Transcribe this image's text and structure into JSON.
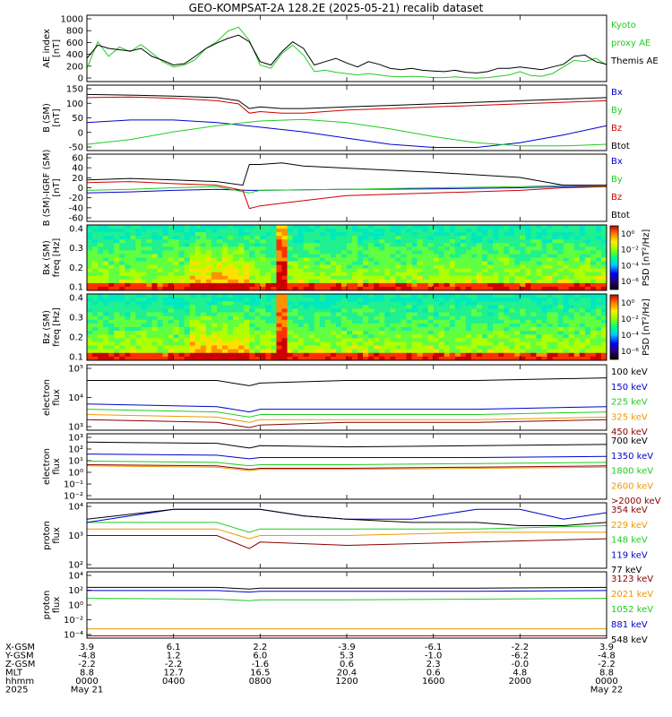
{
  "title": "GEO-KOMPSAT-2A 128.2E (2025-05-21) recalib dataset",
  "chart_data": [
    {
      "type": "line",
      "id": "ae",
      "ylabel": [
        "AE index",
        "[nT]"
      ],
      "yticks": [
        "1000",
        "800",
        "600",
        "400",
        "200",
        "0"
      ],
      "ylim": [
        0,
        1000
      ],
      "series": [
        {
          "name": "Kyoto proxy AE",
          "label_lines": [
            "Kyoto",
            "proxy AE"
          ],
          "color": "#22cc22",
          "x": [
            0,
            0.5,
            1,
            1.5,
            2,
            2.5,
            3,
            3.5,
            4,
            4.5,
            5,
            5.5,
            6,
            6.5,
            7,
            7.5,
            8,
            8.5,
            9,
            9.5,
            10,
            10.5,
            11,
            11.5,
            12,
            12.5,
            13,
            13.5,
            14,
            14.5,
            15,
            15.5,
            16,
            16.5,
            17,
            17.5,
            18,
            18.5,
            19,
            19.5,
            20,
            20.5,
            21,
            21.5,
            22,
            22.5,
            23,
            23.5,
            24
          ],
          "y": [
            200,
            600,
            380,
            520,
            450,
            560,
            430,
            300,
            220,
            250,
            330,
            500,
            600,
            760,
            820,
            620,
            250,
            200,
            420,
            550,
            400,
            150,
            170,
            140,
            120,
            100,
            120,
            100,
            80,
            70,
            80,
            70,
            60,
            60,
            70,
            60,
            50,
            60,
            80,
            100,
            150,
            90,
            80,
            120,
            220,
            320,
            300,
            350,
            250
          ]
        },
        {
          "name": "Themis AE",
          "color": "#000000",
          "x": [
            0,
            0.5,
            1,
            1.5,
            2,
            2.5,
            3,
            3.5,
            4,
            4.5,
            5,
            5.5,
            6,
            6.5,
            7,
            7.5,
            8,
            8.5,
            9,
            9.5,
            10,
            10.5,
            11,
            11.5,
            12,
            12.5,
            13,
            13.5,
            14,
            14.5,
            15,
            15.5,
            16,
            16.5,
            17,
            17.5,
            18,
            18.5,
            19,
            19.5,
            20,
            20.5,
            21,
            21.5,
            22,
            22.5,
            23,
            23.5,
            24
          ],
          "y": [
            350,
            550,
            500,
            480,
            460,
            500,
            380,
            320,
            250,
            270,
            380,
            500,
            580,
            650,
            700,
            600,
            300,
            250,
            450,
            600,
            500,
            250,
            300,
            350,
            280,
            220,
            300,
            260,
            200,
            180,
            200,
            170,
            160,
            150,
            170,
            140,
            130,
            150,
            200,
            200,
            220,
            200,
            180,
            220,
            260,
            380,
            400,
            300,
            260
          ]
        }
      ]
    },
    {
      "type": "line",
      "id": "bsm",
      "ylabel": [
        "B (SM)",
        "[nT]"
      ],
      "yticks": [
        "150",
        "100",
        "50",
        "0",
        "-50"
      ],
      "ylim": [
        -60,
        150
      ],
      "series": [
        {
          "name": "Bx",
          "color": "#0000cc",
          "x": [
            0,
            2,
            4,
            6,
            8,
            10,
            12,
            14,
            16,
            18,
            20,
            22,
            24
          ],
          "y": [
            30,
            38,
            38,
            30,
            15,
            0,
            -20,
            -40,
            -50,
            -50,
            -35,
            -10,
            20
          ]
        },
        {
          "name": "By",
          "color": "#22cc22",
          "x": [
            0,
            2,
            4,
            6,
            8,
            10,
            12,
            14,
            16,
            18,
            20,
            22,
            24
          ],
          "y": [
            -40,
            -25,
            0,
            20,
            35,
            40,
            30,
            10,
            -15,
            -35,
            -45,
            -45,
            -40
          ]
        },
        {
          "name": "Bz",
          "color": "#cc0000",
          "x": [
            0,
            2,
            4,
            6,
            7,
            7.5,
            8,
            9,
            10,
            12,
            14,
            16,
            18,
            20,
            22,
            24
          ],
          "y": [
            110,
            112,
            108,
            100,
            90,
            60,
            65,
            60,
            60,
            70,
            75,
            80,
            85,
            90,
            95,
            100
          ]
        },
        {
          "name": "Btot",
          "color": "#000000",
          "x": [
            0,
            2,
            4,
            6,
            7,
            7.5,
            8,
            9,
            10,
            12,
            14,
            16,
            18,
            20,
            22,
            24
          ],
          "y": [
            120,
            118,
            115,
            110,
            100,
            75,
            80,
            75,
            75,
            80,
            85,
            90,
            95,
            100,
            105,
            110
          ]
        }
      ]
    },
    {
      "type": "line",
      "id": "bsm_igrf",
      "ylabel": [
        "B (SM)-IGRF (SM)",
        "[nT]"
      ],
      "yticks": [
        "60",
        "40",
        "20",
        "0",
        "-20",
        "-40",
        "-60"
      ],
      "ylim": [
        -65,
        65
      ],
      "series": [
        {
          "name": "Bx",
          "color": "#0000cc",
          "x": [
            0,
            2,
            4,
            6,
            7.5,
            8,
            12,
            16,
            20,
            22,
            24
          ],
          "y": [
            -10,
            -8,
            -5,
            -3,
            -5,
            -5,
            -3,
            -2,
            0,
            2,
            2
          ]
        },
        {
          "name": "By",
          "color": "#22cc22",
          "x": [
            0,
            2,
            4,
            6,
            7.5,
            8,
            12,
            16,
            20,
            22,
            24
          ],
          "y": [
            -5,
            -3,
            0,
            2,
            -10,
            -5,
            -3,
            0,
            2,
            5,
            3
          ]
        },
        {
          "name": "Bz",
          "color": "#cc0000",
          "x": [
            0,
            2,
            4,
            6,
            7.2,
            7.5,
            8,
            9,
            10,
            12,
            16,
            20,
            22,
            24
          ],
          "y": [
            10,
            12,
            8,
            5,
            -5,
            -40,
            -35,
            -30,
            -25,
            -15,
            -10,
            -5,
            0,
            2
          ]
        },
        {
          "name": "Btot",
          "color": "#000000",
          "x": [
            0,
            2,
            4,
            6,
            7.2,
            7.5,
            8,
            9,
            10,
            12,
            16,
            20,
            22,
            24
          ],
          "y": [
            15,
            18,
            15,
            12,
            5,
            45,
            45,
            48,
            42,
            38,
            30,
            20,
            5,
            5
          ]
        }
      ]
    },
    {
      "type": "heatmap",
      "id": "bx_spec",
      "ylabel": [
        "Bx (SM)",
        "freq [Hz]"
      ],
      "yticks": [
        "0.4",
        "0.3",
        "0.2",
        "0.1"
      ],
      "colorbar_label": "PSD [nT²/Hz]",
      "colorbar_ticks": [
        "10⁰",
        "10⁻²",
        "10⁻⁴",
        "10⁻⁶"
      ]
    },
    {
      "type": "heatmap",
      "id": "bz_spec",
      "ylabel": [
        "Bz (SM)",
        "freq [Hz]"
      ],
      "yticks": [
        "0.4",
        "0.3",
        "0.2",
        "0.1"
      ],
      "colorbar_label": "PSD [nT²/Hz]",
      "colorbar_ticks": [
        "10⁰",
        "10⁻²",
        "10⁻⁴",
        "10⁻⁶"
      ]
    },
    {
      "type": "line",
      "id": "e_low",
      "log_scale": true,
      "ylabel": [
        "electron",
        "flux"
      ],
      "yticks": [
        "10⁵",
        "10⁴",
        "10³"
      ],
      "ylim": [
        2.5,
        5
      ],
      "series": [
        {
          "name": "100 keV",
          "color": "#000000",
          "x": [
            0,
            6,
            7.5,
            8,
            12,
            18,
            24
          ],
          "y": [
            4.4,
            4.4,
            4.2,
            4.3,
            4.4,
            4.4,
            4.5
          ]
        },
        {
          "name": "150 keV",
          "color": "#0000cc",
          "x": [
            0,
            6,
            7.5,
            8,
            12,
            18,
            24
          ],
          "y": [
            3.5,
            3.4,
            3.2,
            3.3,
            3.3,
            3.3,
            3.4
          ]
        },
        {
          "name": "225 keV",
          "color": "#22cc22",
          "x": [
            0,
            6,
            7.5,
            8,
            12,
            18,
            24
          ],
          "y": [
            3.3,
            3.2,
            3.0,
            3.1,
            3.1,
            3.1,
            3.2
          ]
        },
        {
          "name": "325 keV",
          "color": "#ee9900",
          "x": [
            0,
            6,
            7.5,
            8,
            12,
            18,
            24
          ],
          "y": [
            3.1,
            3.0,
            2.8,
            2.9,
            2.9,
            2.9,
            3.0
          ]
        },
        {
          "name": "450 keV",
          "color": "#880000",
          "x": [
            0,
            6,
            7.5,
            8,
            12,
            18,
            24
          ],
          "y": [
            2.9,
            2.8,
            2.6,
            2.7,
            2.8,
            2.8,
            2.9
          ]
        }
      ]
    },
    {
      "type": "line",
      "id": "e_high",
      "log_scale": true,
      "ylabel": [
        "electron",
        "flux"
      ],
      "yticks": [
        "10³",
        "10²",
        "10¹",
        "10⁰",
        "10⁻¹",
        "10⁻²"
      ],
      "ylim": [
        -2.5,
        3
      ],
      "series": [
        {
          "name": "700 keV",
          "color": "#000000",
          "x": [
            0,
            6,
            7.5,
            8,
            12,
            18,
            24
          ],
          "y": [
            2.3,
            2.2,
            1.8,
            2.0,
            1.9,
            2.0,
            2.1
          ]
        },
        {
          "name": "1350 keV",
          "color": "#0000cc",
          "x": [
            0,
            6,
            7.5,
            8,
            12,
            18,
            24
          ],
          "y": [
            1.3,
            1.2,
            0.9,
            1.0,
            1.0,
            1.0,
            1.1
          ]
        },
        {
          "name": "1800 keV",
          "color": "#22cc22",
          "x": [
            0,
            6,
            7.5,
            8,
            12,
            18,
            24
          ],
          "y": [
            0.7,
            0.6,
            0.3,
            0.4,
            0.4,
            0.5,
            0.6
          ]
        },
        {
          "name": "2600 keV",
          "color": "#ee9900",
          "x": [
            0,
            6,
            7.5,
            8,
            12,
            18,
            24
          ],
          "y": [
            0.3,
            0.2,
            -0.1,
            0.0,
            0.0,
            0.1,
            0.2
          ]
        },
        {
          "name": ">2000 keV",
          "color": "#880000",
          "x": [
            0,
            6,
            7.5,
            8,
            12,
            18,
            24
          ],
          "y": [
            0.4,
            0.3,
            0.0,
            0.1,
            0.1,
            0.2,
            0.3
          ]
        }
      ]
    },
    {
      "type": "line",
      "id": "p_low",
      "log_scale": true,
      "ylabel": [
        "proton",
        "flux"
      ],
      "yticks": [
        "10⁴",
        "10³",
        "10²"
      ],
      "ylim": [
        2,
        4
      ],
      "series": [
        {
          "name": "354 keV",
          "color": "#880000",
          "x": [
            0,
            6,
            7.5,
            8,
            12,
            18,
            24
          ],
          "y": [
            3.0,
            3.0,
            2.6,
            2.8,
            2.7,
            2.8,
            2.9
          ]
        },
        {
          "name": "229 keV",
          "color": "#ee9900",
          "x": [
            0,
            6,
            7.5,
            8,
            12,
            18,
            24
          ],
          "y": [
            3.2,
            3.2,
            2.9,
            3.0,
            3.0,
            3.1,
            3.1
          ]
        },
        {
          "name": "148 keV",
          "color": "#22cc22",
          "x": [
            0,
            6,
            7.5,
            8,
            12,
            18,
            24
          ],
          "y": [
            3.4,
            3.4,
            3.1,
            3.2,
            3.2,
            3.2,
            3.3
          ]
        },
        {
          "name": "119 keV",
          "color": "#0000cc",
          "x": [
            0,
            4,
            8,
            10,
            12,
            15,
            18,
            20,
            22,
            24
          ],
          "y": [
            3.4,
            3.8,
            3.8,
            3.6,
            3.5,
            3.5,
            3.8,
            3.8,
            3.5,
            3.7
          ]
        },
        {
          "name": "77 keV",
          "color": "#000000",
          "x": [
            0,
            4,
            8,
            10,
            12,
            15,
            18,
            20,
            22,
            24
          ],
          "y": [
            3.5,
            3.8,
            3.8,
            3.6,
            3.5,
            3.4,
            3.4,
            3.3,
            3.3,
            3.4
          ]
        }
      ]
    },
    {
      "type": "line",
      "id": "p_high",
      "log_scale": true,
      "ylabel": [
        "proton",
        "flux"
      ],
      "yticks": [
        "10⁴",
        "10²",
        "10⁰",
        "10⁻²",
        "10⁻⁴"
      ],
      "ylim": [
        -4.5,
        4
      ],
      "series": [
        {
          "name": "3123 keV",
          "color": "#880000",
          "x": [
            0,
            6,
            12,
            18,
            24
          ],
          "y": [
            -4.2,
            -4.2,
            -4.2,
            -4.2,
            -4.2
          ]
        },
        {
          "name": "2021 keV",
          "color": "#ee9900",
          "x": [
            0,
            6,
            12,
            18,
            24
          ],
          "y": [
            -3.3,
            -3.3,
            -3.3,
            -3.3,
            -3.3
          ]
        },
        {
          "name": "1052 keV",
          "color": "#22cc22",
          "x": [
            0,
            6,
            7.5,
            8,
            12,
            18,
            24
          ],
          "y": [
            0.6,
            0.5,
            0.3,
            0.4,
            0.4,
            0.5,
            0.6
          ]
        },
        {
          "name": "881 keV",
          "color": "#0000cc",
          "x": [
            0,
            6,
            7.5,
            8,
            12,
            18,
            24
          ],
          "y": [
            1.6,
            1.6,
            1.4,
            1.5,
            1.5,
            1.5,
            1.6
          ]
        },
        {
          "name": "548 keV",
          "color": "#000000",
          "x": [
            0,
            6,
            7.5,
            8,
            12,
            18,
            24
          ],
          "y": [
            2.0,
            2.0,
            1.8,
            1.9,
            1.9,
            1.9,
            2.0
          ]
        }
      ]
    }
  ],
  "x_axis": {
    "xlim": [
      0,
      24
    ],
    "ticks": [
      0,
      4,
      8,
      12,
      16,
      20,
      24
    ],
    "rows": [
      {
        "label": "X-GSM",
        "values": [
          "3.9",
          "6.1",
          "2.2",
          "-3.9",
          "-6.1",
          "-2.2",
          "3.9"
        ]
      },
      {
        "label": "Y-GSM",
        "values": [
          "-4.8",
          "1.2",
          "6.0",
          "5.3",
          "-1.0",
          "-6.2",
          "-4.8"
        ]
      },
      {
        "label": "Z-GSM",
        "values": [
          "-2.2",
          "-2.2",
          "-1.6",
          "0.6",
          "2.3",
          "-0.0",
          "-2.2"
        ]
      },
      {
        "label": "MLT",
        "values": [
          "8.8",
          "12.7",
          "16.5",
          "20.4",
          "0.6",
          "4.8",
          "8.8"
        ]
      },
      {
        "label": "hhmm",
        "values": [
          "0000",
          "0400",
          "0800",
          "1200",
          "1600",
          "2000",
          "0000"
        ]
      },
      {
        "label": "2025",
        "values": [
          "May 21",
          "",
          "",
          "",
          "",
          "",
          "May 22"
        ]
      }
    ]
  }
}
